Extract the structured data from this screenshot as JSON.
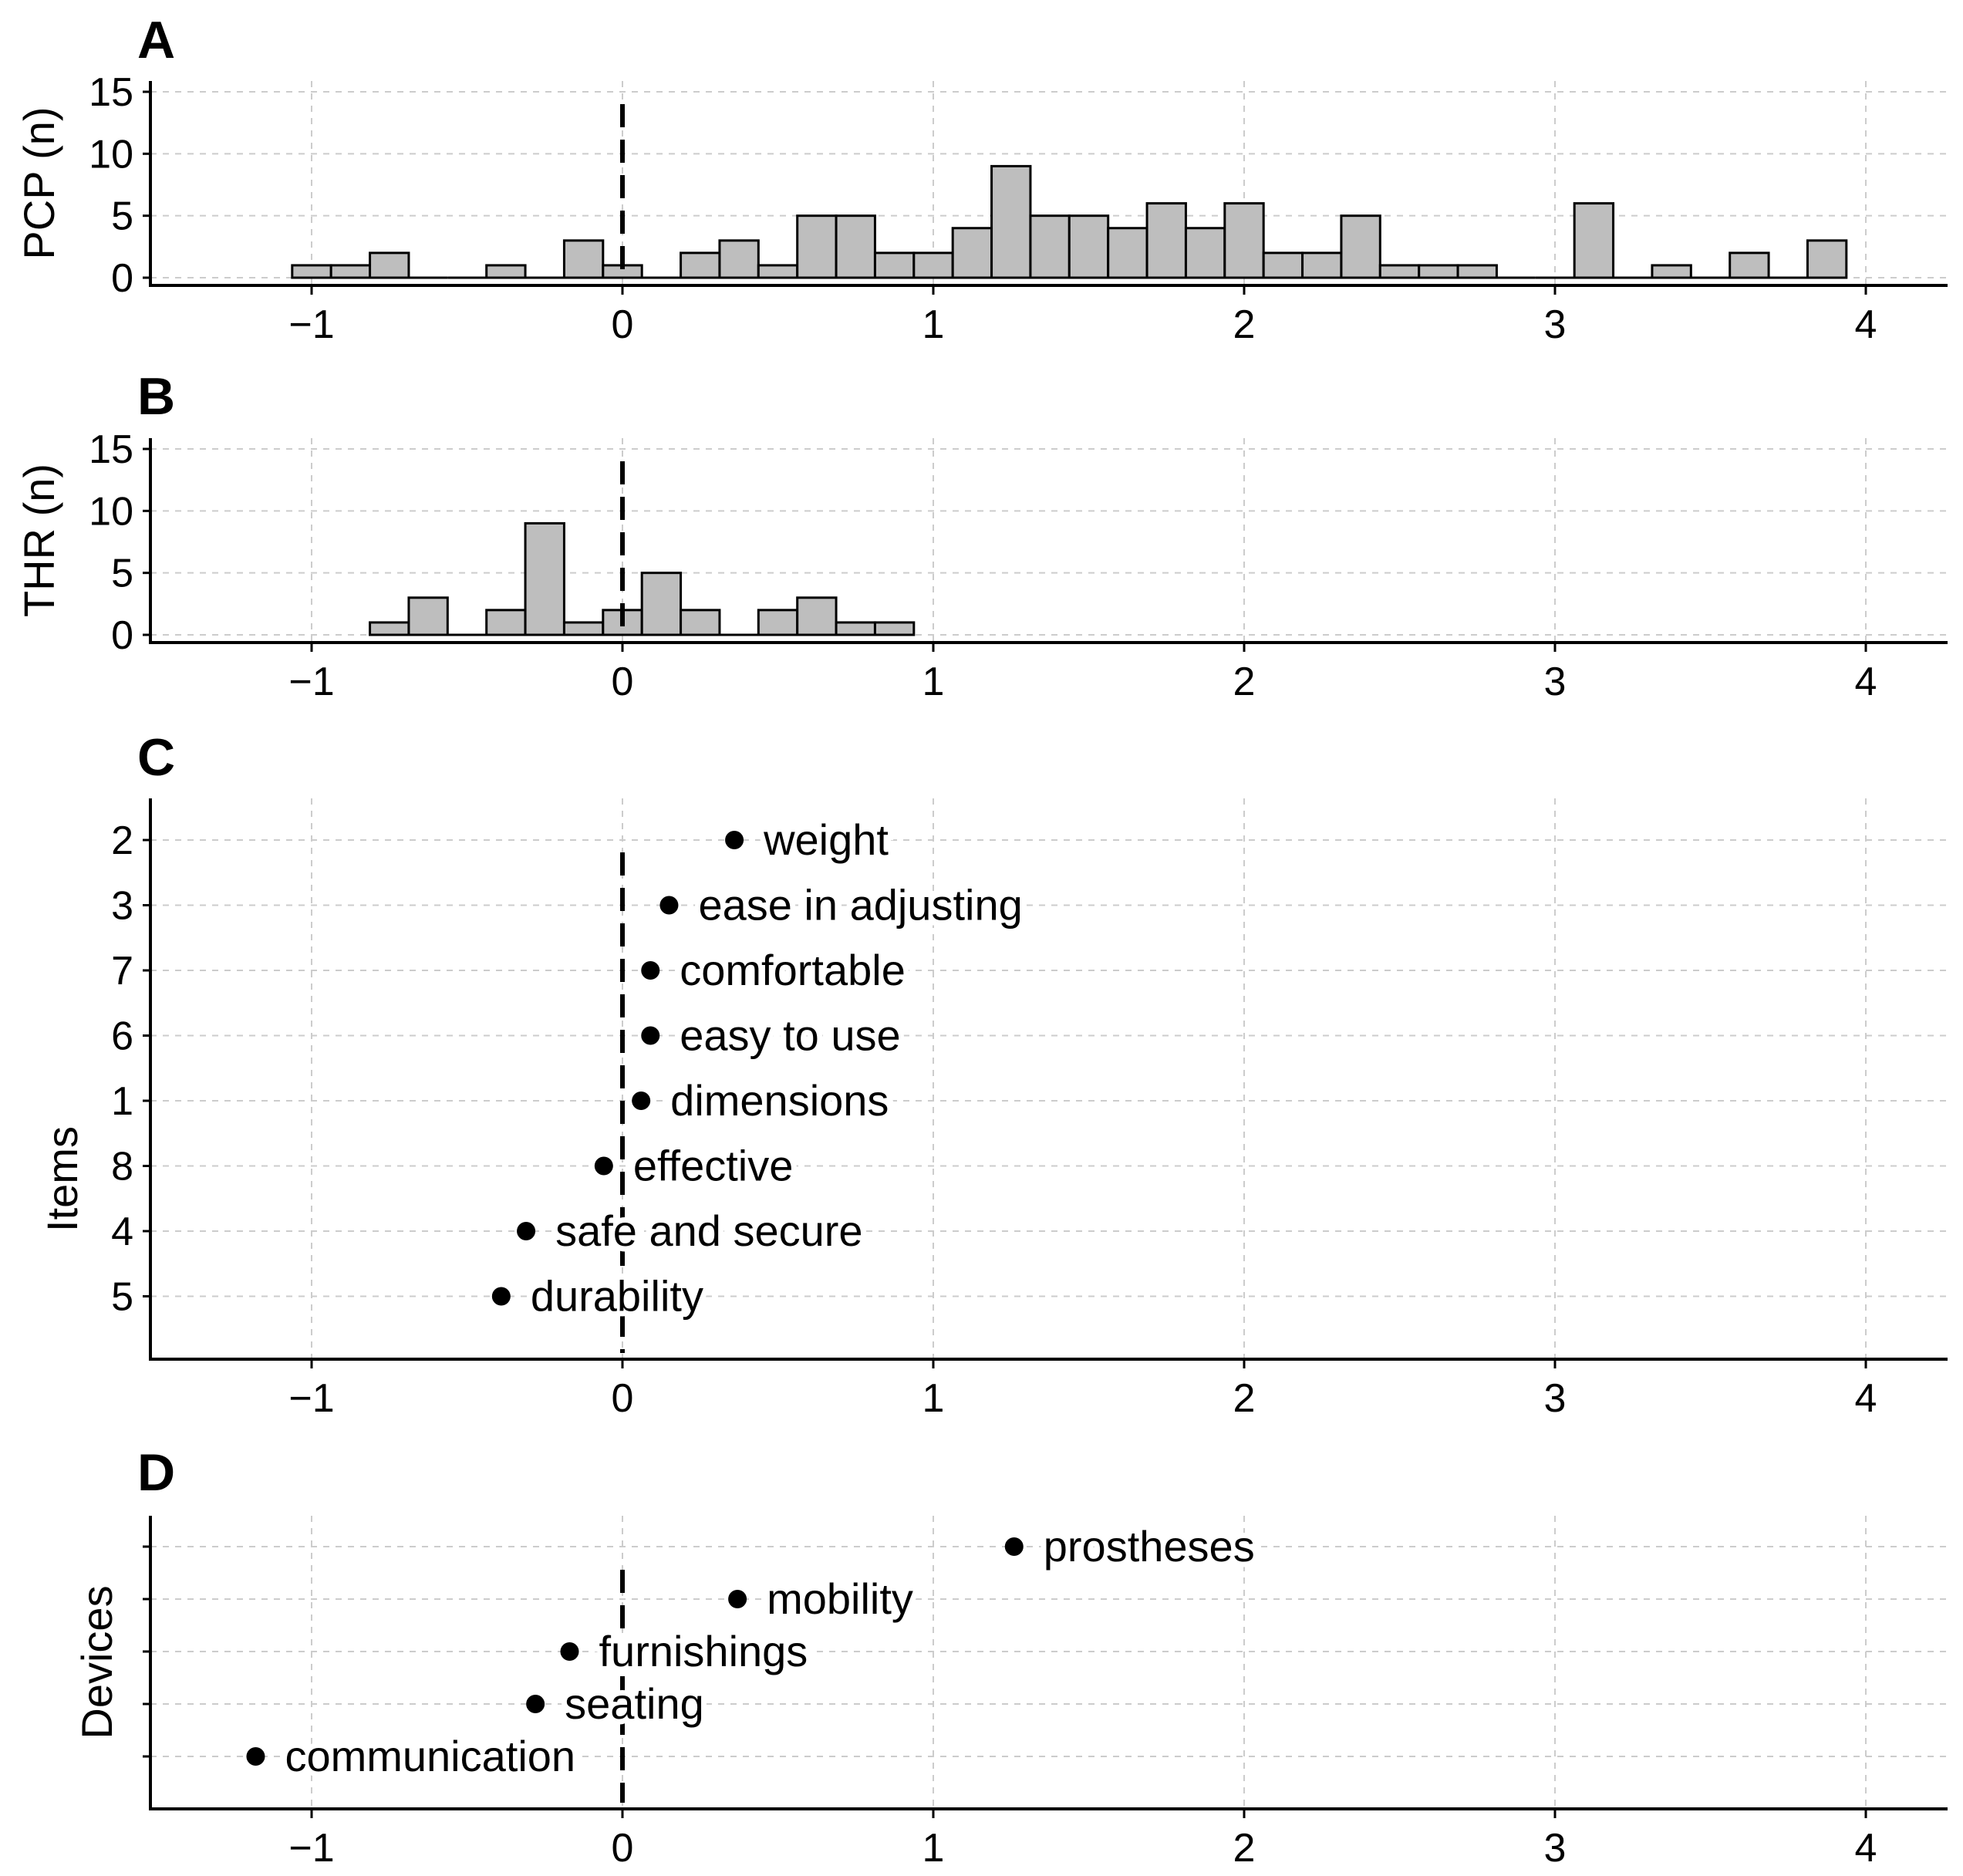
{
  "chart_data": [
    {
      "panel": "A",
      "type": "bar",
      "ylabel": "PCP (n)",
      "xlabel": "",
      "xlim": [
        -1.5,
        4.25
      ],
      "ylim": [
        0,
        15
      ],
      "xticks": [
        "−1",
        "0",
        "1",
        "2",
        "3",
        "4"
      ],
      "yticks": [
        "0",
        "5",
        "10",
        "15"
      ],
      "bin_width": 0.125,
      "bin_start": -1.0625,
      "counts": [
        1,
        1,
        2,
        0,
        0,
        1,
        0,
        3,
        1,
        0,
        2,
        3,
        1,
        5,
        5,
        2,
        2,
        4,
        9,
        5,
        5,
        4,
        6,
        4,
        6,
        2,
        2,
        5,
        1,
        1,
        1,
        0,
        0,
        6,
        0,
        1,
        0,
        2,
        0,
        3
      ],
      "reference_line_x": 0
    },
    {
      "panel": "B",
      "type": "bar",
      "ylabel": "THR (n)",
      "xlabel": "",
      "xlim": [
        -1.5,
        4.25
      ],
      "ylim": [
        0,
        15
      ],
      "xticks": [
        "−1",
        "0",
        "1",
        "2",
        "3",
        "4"
      ],
      "yticks": [
        "0",
        "5",
        "10",
        "15"
      ],
      "bin_width": 0.125,
      "bin_start": -0.8125,
      "counts": [
        1,
        3,
        0,
        2,
        9,
        1,
        2,
        5,
        2,
        0,
        2,
        3,
        1,
        1
      ],
      "reference_line_x": 0
    },
    {
      "panel": "C",
      "type": "scatter",
      "ylabel": "Items",
      "xlabel": "",
      "xlim": [
        -1.5,
        4.25
      ],
      "xticks": [
        "−1",
        "0",
        "1",
        "2",
        "3",
        "4"
      ],
      "points": [
        {
          "tick": "2",
          "label": "weight",
          "x": 0.36
        },
        {
          "tick": "3",
          "label": "ease in adjusting",
          "x": 0.15
        },
        {
          "tick": "7",
          "label": "comfortable",
          "x": 0.09
        },
        {
          "tick": "6",
          "label": "easy to use",
          "x": 0.09
        },
        {
          "tick": "1",
          "label": "dimensions",
          "x": 0.06
        },
        {
          "tick": "8",
          "label": "effective",
          "x": -0.06
        },
        {
          "tick": "4",
          "label": "safe and secure",
          "x": -0.31
        },
        {
          "tick": "5",
          "label": "durability",
          "x": -0.39
        }
      ],
      "reference_line_x": 0
    },
    {
      "panel": "D",
      "type": "scatter",
      "ylabel": "Devices",
      "xlabel": "",
      "xlim": [
        -1.5,
        4.25
      ],
      "xticks": [
        "−1",
        "0",
        "1",
        "2",
        "3",
        "4"
      ],
      "points": [
        {
          "label": "prostheses",
          "x": 1.26
        },
        {
          "label": "mobility",
          "x": 0.37
        },
        {
          "label": "furnishings",
          "x": -0.17
        },
        {
          "label": "seating",
          "x": -0.28
        },
        {
          "label": "communication",
          "x": -1.18
        }
      ],
      "reference_line_x": 0
    }
  ]
}
